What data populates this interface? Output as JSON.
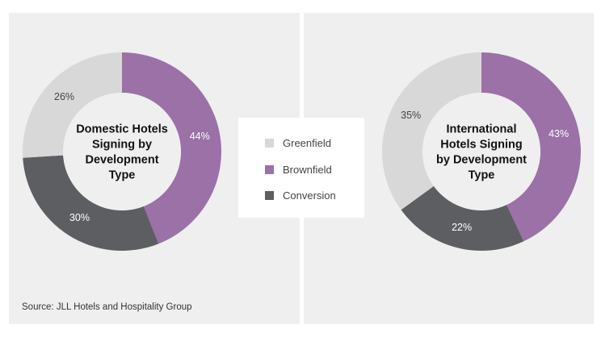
{
  "chart_data": [
    {
      "type": "pie",
      "title_lines": [
        "Domestic Hotels",
        "Signing by",
        "Development",
        "Type"
      ],
      "slices": [
        {
          "label": "Brownfield",
          "value": 44,
          "text": "44%",
          "color": "#9b71a8",
          "text_color": "#ffffff"
        },
        {
          "label": "Conversion",
          "value": 30,
          "text": "30%",
          "color": "#5d5e62",
          "text_color": "#ffffff"
        },
        {
          "label": "Greenfield",
          "value": 26,
          "text": "26%",
          "color": "#d8d8d8",
          "text_color": "#444444"
        }
      ]
    },
    {
      "type": "pie",
      "title_lines": [
        "International",
        "Hotels Signing",
        "by Development",
        "Type"
      ],
      "slices": [
        {
          "label": "Brownfield",
          "value": 43,
          "text": "43%",
          "color": "#9b71a8",
          "text_color": "#ffffff"
        },
        {
          "label": "Conversion",
          "value": 22,
          "text": "22%",
          "color": "#5d5e62",
          "text_color": "#ffffff"
        },
        {
          "label": "Greenfield",
          "value": 35,
          "text": "35%",
          "color": "#d8d8d8",
          "text_color": "#444444"
        }
      ]
    }
  ],
  "legend": [
    {
      "label": "Greenfield",
      "color": "#d8d8d8"
    },
    {
      "label": "Brownfield",
      "color": "#9b71a8"
    },
    {
      "label": "Conversion",
      "color": "#5d5e62"
    }
  ],
  "source": "Source: JLL Hotels and Hospitality Group",
  "colors": {
    "panel_background": "#efefef",
    "center_fill": "#efefef"
  }
}
